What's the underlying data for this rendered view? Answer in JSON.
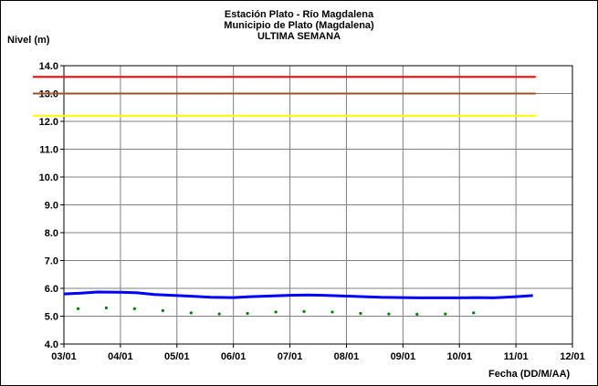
{
  "chart_data": {
    "type": "line",
    "title_lines": [
      "Estación Plato - Río Magdalena",
      "Municipio de Plato (Magdalena)",
      "ULTIMA SEMANA"
    ],
    "ylabel": "Nivel (m)",
    "xlabel": "Fecha (DD/M/AA)",
    "ylim": [
      4.0,
      14.0
    ],
    "xlim_days": [
      0,
      9
    ],
    "y_ticks": [
      "4.0",
      "5.0",
      "6.0",
      "7.0",
      "8.0",
      "9.0",
      "10.0",
      "11.0",
      "12.0",
      "13.0",
      "14.0"
    ],
    "x_ticks": [
      "03/01",
      "04/01",
      "05/01",
      "06/01",
      "07/01",
      "08/01",
      "09/01",
      "10/01",
      "11/01",
      "12/01"
    ],
    "grid": true,
    "threshold_lines": [
      {
        "value": 13.6,
        "color": "#ff0000"
      },
      {
        "value": 13.0,
        "color": "#a0522d"
      },
      {
        "value": 12.2,
        "color": "#ffff00"
      }
    ],
    "threshold_x_range_days": [
      -0.55,
      8.35
    ],
    "series": [
      {
        "style": "line",
        "color": "#0000ff",
        "x": [
          0.0,
          0.3,
          0.6,
          1.0,
          1.3,
          1.6,
          2.0,
          2.3,
          2.6,
          3.0,
          3.3,
          3.6,
          4.0,
          4.3,
          4.6,
          5.0,
          5.3,
          5.6,
          6.0,
          6.3,
          6.6,
          7.0,
          7.3,
          7.6,
          8.0,
          8.3
        ],
        "values": [
          5.8,
          5.83,
          5.87,
          5.86,
          5.84,
          5.78,
          5.74,
          5.71,
          5.68,
          5.67,
          5.7,
          5.72,
          5.75,
          5.76,
          5.75,
          5.72,
          5.7,
          5.68,
          5.67,
          5.66,
          5.66,
          5.66,
          5.67,
          5.66,
          5.7,
          5.74
        ]
      },
      {
        "style": "markers",
        "color": "#008000",
        "x": [
          0.25,
          0.75,
          1.25,
          1.75,
          2.25,
          2.75,
          3.25,
          3.75,
          4.25,
          4.75,
          5.25,
          5.75,
          6.25,
          6.75,
          7.25
        ],
        "values": [
          5.27,
          5.3,
          5.27,
          5.2,
          5.12,
          5.08,
          5.1,
          5.15,
          5.17,
          5.15,
          5.1,
          5.08,
          5.07,
          5.08,
          5.12
        ]
      }
    ],
    "colors": {
      "grid": "#808080",
      "plot_bg": "#ffffff"
    }
  }
}
